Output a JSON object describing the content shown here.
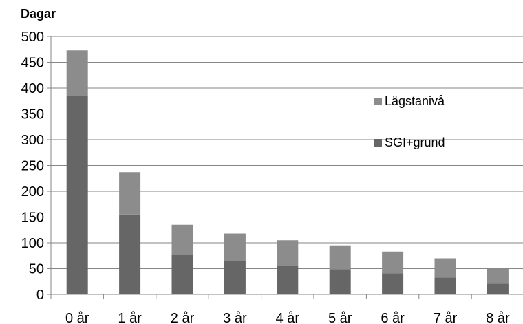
{
  "chart_data": {
    "type": "bar",
    "stacked": true,
    "title": "",
    "ylabel": "Dagar",
    "xlabel": "",
    "ylim": [
      0,
      500
    ],
    "yticks": [
      0,
      50,
      100,
      150,
      200,
      250,
      300,
      350,
      400,
      450,
      500
    ],
    "categories": [
      "0 år",
      "1 år",
      "2 år",
      "3 år",
      "4 år",
      "5 år",
      "6 år",
      "7 år",
      "8 år"
    ],
    "series": [
      {
        "name": "SGI+grund",
        "color": "#666666",
        "values": [
          384,
          155,
          77,
          65,
          56,
          49,
          41,
          33,
          21
        ]
      },
      {
        "name": "Lägstanivå",
        "color": "#8c8c8c",
        "values": [
          89,
          82,
          58,
          53,
          49,
          46,
          42,
          37,
          29
        ]
      }
    ],
    "legend_order": [
      "Lägstanivå",
      "SGI+grund"
    ],
    "legend_position": "right",
    "grid": true,
    "grid_color": "#868686",
    "axis_color": "#868686"
  }
}
